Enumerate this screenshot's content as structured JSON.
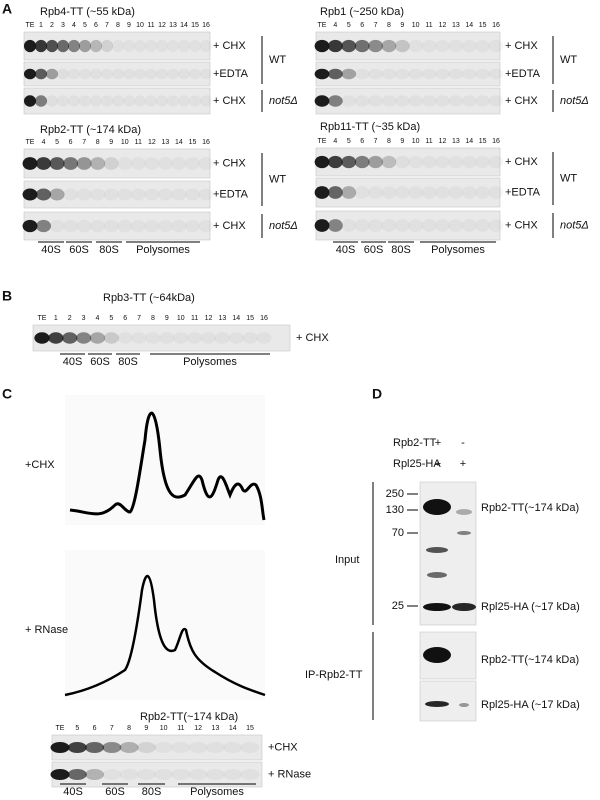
{
  "panels": {
    "A": {
      "label": "A",
      "blots": [
        {
          "title": "Rpb4-TT (~55 kDa)",
          "lanes": [
            "TE",
            "1",
            "2",
            "3",
            "4",
            "5",
            "6",
            "7",
            "8",
            "9",
            "10",
            "11",
            "12",
            "13",
            "14",
            "15",
            "16"
          ],
          "rows": [
            "+ CHX",
            "+EDTA",
            "+ CHX"
          ],
          "groups": [
            "WT",
            "not5Δ"
          ]
        },
        {
          "title": "Rpb1 (~250 kDa)",
          "lanes": [
            "TE",
            "4",
            "5",
            "6",
            "7",
            "8",
            "9",
            "10",
            "11",
            "12",
            "13",
            "14",
            "15",
            "16"
          ],
          "rows": [
            "+ CHX",
            "+EDTA",
            "+ CHX"
          ],
          "groups": [
            "WT",
            "not5Δ"
          ]
        },
        {
          "title": "Rpb2-TT (~174 kDa)",
          "lanes": [
            "TE",
            "4",
            "5",
            "6",
            "7",
            "8",
            "9",
            "10",
            "11",
            "12",
            "13",
            "14",
            "15",
            "16"
          ],
          "rows": [
            "+ CHX",
            "+EDTA",
            "+ CHX"
          ],
          "groups": [
            "WT",
            "not5Δ"
          ],
          "fractions": [
            "40S",
            "60S",
            "80S",
            "Polysomes"
          ]
        },
        {
          "title": "Rpb11-TT (~35 kDa)",
          "lanes": [
            "TE",
            "4",
            "5",
            "6",
            "7",
            "8",
            "9",
            "10",
            "11",
            "12",
            "13",
            "14",
            "15",
            "16"
          ],
          "rows": [
            "+ CHX",
            "+EDTA",
            "+ CHX"
          ],
          "groups": [
            "WT",
            "not5Δ"
          ],
          "fractions": [
            "40S",
            "60S",
            "80S",
            "Polysomes"
          ]
        }
      ]
    },
    "B": {
      "label": "B",
      "blots": [
        {
          "title": "Rpb3-TT (~64kDa)",
          "lanes": [
            "TE",
            "1",
            "2",
            "3",
            "4",
            "5",
            "6",
            "7",
            "8",
            "9",
            "10",
            "11",
            "12",
            "13",
            "14",
            "15",
            "16"
          ],
          "rows": [
            "+ CHX"
          ],
          "fractions": [
            "40S",
            "60S",
            "80S",
            "Polysomes"
          ]
        }
      ]
    },
    "C": {
      "label": "C",
      "profiles": [
        "+CHX",
        "+ RNase"
      ],
      "blots": [
        {
          "title": "Rpb2-TT(~174 kDa)",
          "lanes": [
            "TE",
            "5",
            "6",
            "7",
            "8",
            "9",
            "10",
            "11",
            "12",
            "13",
            "14",
            "15"
          ],
          "rows": [
            "+CHX",
            "+ RNase"
          ],
          "fractions": [
            "40S",
            "60S",
            "80S",
            "Polysomes"
          ]
        }
      ]
    },
    "D": {
      "label": "D",
      "conditions": [
        {
          "name": "Rpb2-TT",
          "marks": [
            "+",
            "-"
          ]
        },
        {
          "name": "Rpl25-HA",
          "marks": [
            "+",
            "+"
          ]
        }
      ],
      "markers": [
        "250",
        "130",
        "70",
        "25"
      ],
      "sections": [
        {
          "label": "Input",
          "bands": [
            "Rpb2-TT(~174 kDa)",
            "Rpl25-HA (~17 kDa)"
          ]
        },
        {
          "label": "IP-Rpb2-TT",
          "bands": [
            "Rpb2-TT(~174 kDa)",
            "Rpl25-HA (~17 kDa)"
          ]
        }
      ]
    }
  }
}
